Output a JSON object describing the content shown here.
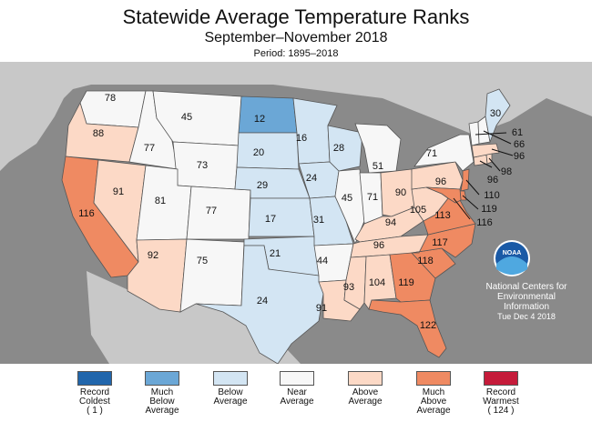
{
  "title": "Statewide Average Temperature Ranks",
  "subtitle": "September–November 2018",
  "period": "Period: 1895–2018",
  "colors": {
    "record_coldest": "#2166ac",
    "much_below": "#6ba7d6",
    "below": "#d3e5f3",
    "near": "#f7f7f7",
    "above": "#fcd9c6",
    "much_above": "#ef8a62",
    "record_warmest": "#c51b3a"
  },
  "legend": [
    {
      "label": "Record\nColdest\n( 1 )",
      "color_key": "record_coldest"
    },
    {
      "label": "Much\nBelow\nAverage",
      "color_key": "much_below"
    },
    {
      "label": "Below\nAverage",
      "color_key": "below"
    },
    {
      "label": "Near\nAverage",
      "color_key": "near"
    },
    {
      "label": "Above\nAverage",
      "color_key": "above"
    },
    {
      "label": "Much\nAbove\nAverage",
      "color_key": "much_above"
    },
    {
      "label": "Record\nWarmest\n( 124 )",
      "color_key": "record_warmest"
    }
  ],
  "states": {
    "WA": {
      "rank": "78",
      "category": "near"
    },
    "OR": {
      "rank": "88",
      "category": "above"
    },
    "CA": {
      "rank": "116",
      "category": "much_above"
    },
    "NV": {
      "rank": "91",
      "category": "above"
    },
    "ID": {
      "rank": "77",
      "category": "near"
    },
    "MT": {
      "rank": "45",
      "category": "near"
    },
    "WY": {
      "rank": "73",
      "category": "near"
    },
    "UT": {
      "rank": "81",
      "category": "near"
    },
    "CO": {
      "rank": "77",
      "category": "near"
    },
    "AZ": {
      "rank": "92",
      "category": "above"
    },
    "NM": {
      "rank": "75",
      "category": "near"
    },
    "ND": {
      "rank": "12",
      "category": "much_below"
    },
    "SD": {
      "rank": "20",
      "category": "below"
    },
    "NE": {
      "rank": "29",
      "category": "below"
    },
    "KS": {
      "rank": "17",
      "category": "below"
    },
    "OK": {
      "rank": "21",
      "category": "below"
    },
    "TX": {
      "rank": "24",
      "category": "below"
    },
    "MN": {
      "rank": "16",
      "category": "below"
    },
    "IA": {
      "rank": "24",
      "category": "below"
    },
    "MO": {
      "rank": "31",
      "category": "below"
    },
    "AR": {
      "rank": "44",
      "category": "near"
    },
    "LA": {
      "rank": "91",
      "category": "above"
    },
    "WI": {
      "rank": "28",
      "category": "below"
    },
    "IL": {
      "rank": "45",
      "category": "near"
    },
    "MI": {
      "rank": "51",
      "category": "near"
    },
    "IN": {
      "rank": "71",
      "category": "near"
    },
    "OH": {
      "rank": "90",
      "category": "above"
    },
    "KY": {
      "rank": "94",
      "category": "above"
    },
    "TN": {
      "rank": "96",
      "category": "above"
    },
    "MS": {
      "rank": "93",
      "category": "above"
    },
    "AL": {
      "rank": "104",
      "category": "above"
    },
    "GA": {
      "rank": "119",
      "category": "much_above"
    },
    "FL": {
      "rank": "122",
      "category": "much_above"
    },
    "SC": {
      "rank": "118",
      "category": "much_above"
    },
    "NC": {
      "rank": "117",
      "category": "much_above"
    },
    "VA": {
      "rank": "113",
      "category": "much_above"
    },
    "WV": {
      "rank": "105",
      "category": "above"
    },
    "PA": {
      "rank": "96",
      "category": "above"
    },
    "NY": {
      "rank": "71",
      "category": "near"
    },
    "ME": {
      "rank": "30",
      "category": "below"
    },
    "VT": {
      "rank": "61",
      "category": "near"
    },
    "NH": {
      "rank": "66",
      "category": "near"
    },
    "MA": {
      "rank": "96",
      "category": "above"
    },
    "RI": {
      "rank": "98",
      "category": "above"
    },
    "CT": {
      "rank": "96",
      "category": "above"
    },
    "NJ": {
      "rank": "110",
      "category": "much_above"
    },
    "DE": {
      "rank": "119",
      "category": "much_above"
    },
    "MD": {
      "rank": "116",
      "category": "much_above"
    }
  },
  "noaa": {
    "logo_text": "NOAA",
    "caption_line1": "National Centers for",
    "caption_line2": "Environmental",
    "caption_line3": "Information",
    "date": "Tue Dec  4 2018"
  }
}
